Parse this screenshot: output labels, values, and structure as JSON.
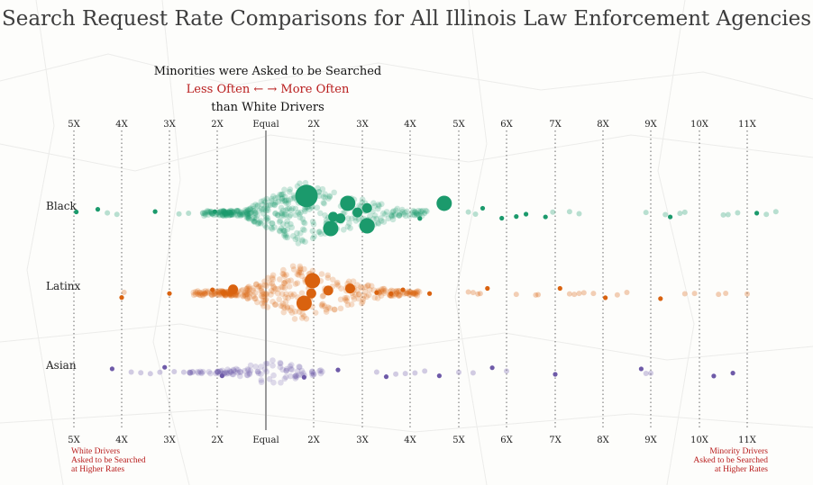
{
  "title": "Search Request Rate Comparisons for All Illinois Law Enforcement Agencies",
  "explainer": {
    "line1": "Minorities were Asked to be Searched",
    "less": "Less Often",
    "arrows": " ← → ",
    "more": "More Often",
    "line3": "than White Drivers"
  },
  "notes": {
    "left": [
      "White Drivers",
      "Asked to be Searched",
      "at Higher Rates"
    ],
    "right": [
      "Minority Drivers",
      "Asked to be Searched",
      "at Higher Rates"
    ]
  },
  "colors": {
    "Black": "#1b9a6c",
    "Latinx": "#d9620f",
    "Asian": "#6e5aa8",
    "annotation": "#b81c1c"
  },
  "chart_data": {
    "type": "scatter",
    "subtype": "beeswarm",
    "title": "Search Request Rate Comparisons for All Illinois Law Enforcement Agencies",
    "x_axis": {
      "ticks": [
        "5X",
        "4X",
        "3X",
        "2X",
        "Equal",
        "2X",
        "3X",
        "4X",
        "5X",
        "6X",
        "7X",
        "8X",
        "9X",
        "10X",
        "11X"
      ],
      "tick_values": [
        -5,
        -4,
        -3,
        -2,
        0,
        2,
        3,
        4,
        5,
        6,
        7,
        8,
        9,
        10,
        11
      ],
      "range": [
        -5,
        11
      ],
      "positions": "top and bottom"
    },
    "y_categories": [
      "Black",
      "Latinx",
      "Asian"
    ],
    "grid": true,
    "series": [
      {
        "name": "Black",
        "note": "many small faint agencies clustered between 1X and 3X; large bubbles are larger agencies",
        "points": [
          {
            "x": -4.95,
            "size": "s"
          },
          {
            "x": -4.5,
            "size": "s"
          },
          {
            "x": -3.3,
            "size": "s"
          },
          {
            "x": -2.05,
            "size": "s"
          },
          {
            "x": 1.7,
            "size": "xl"
          },
          {
            "x": 2.35,
            "size": "l"
          },
          {
            "x": 2.7,
            "size": "l"
          },
          {
            "x": 3.1,
            "size": "l"
          },
          {
            "x": 3.1,
            "size": "m"
          },
          {
            "x": 2.55,
            "size": "m"
          },
          {
            "x": 2.9,
            "size": "m"
          },
          {
            "x": 2.4,
            "size": "m"
          },
          {
            "x": 4.7,
            "size": "l"
          },
          {
            "x": 4.2,
            "size": "s"
          },
          {
            "x": 5.5,
            "size": "s"
          },
          {
            "x": 5.9,
            "size": "s"
          },
          {
            "x": 6.2,
            "size": "s"
          },
          {
            "x": 6.4,
            "size": "s"
          },
          {
            "x": 6.8,
            "size": "s"
          },
          {
            "x": 9.4,
            "size": "s"
          },
          {
            "x": 11.2,
            "size": "s"
          }
        ]
      },
      {
        "name": "Latinx",
        "note": "many small faint agencies clustered between 2X less and 2X more",
        "points": [
          {
            "x": -4.0,
            "size": "s"
          },
          {
            "x": -3.0,
            "size": "s"
          },
          {
            "x": -2.1,
            "size": "s"
          },
          {
            "x": 1.6,
            "size": "l"
          },
          {
            "x": 1.95,
            "size": "l"
          },
          {
            "x": 1.9,
            "size": "m"
          },
          {
            "x": 2.3,
            "size": "m"
          },
          {
            "x": 2.75,
            "size": "m"
          },
          {
            "x": -1.35,
            "size": "m"
          },
          {
            "x": 3.3,
            "size": "s"
          },
          {
            "x": 3.6,
            "size": "s"
          },
          {
            "x": 3.85,
            "size": "s"
          },
          {
            "x": 4.4,
            "size": "s"
          },
          {
            "x": 5.6,
            "size": "s"
          },
          {
            "x": 7.1,
            "size": "s"
          },
          {
            "x": 8.05,
            "size": "s"
          },
          {
            "x": 9.2,
            "size": "s"
          }
        ]
      },
      {
        "name": "Asian",
        "note": "small faint agencies, mostly between 2X less and 2X more",
        "points": [
          {
            "x": -4.2,
            "size": "s"
          },
          {
            "x": -3.1,
            "size": "s"
          },
          {
            "x": -1.8,
            "size": "s"
          },
          {
            "x": 1.6,
            "size": "s"
          },
          {
            "x": 2.5,
            "size": "s"
          },
          {
            "x": 3.5,
            "size": "s"
          },
          {
            "x": 4.6,
            "size": "s"
          },
          {
            "x": 5.7,
            "size": "s"
          },
          {
            "x": 7.0,
            "size": "s"
          },
          {
            "x": 8.8,
            "size": "s"
          },
          {
            "x": 10.3,
            "size": "s"
          },
          {
            "x": 10.7,
            "size": "s"
          }
        ]
      }
    ]
  }
}
